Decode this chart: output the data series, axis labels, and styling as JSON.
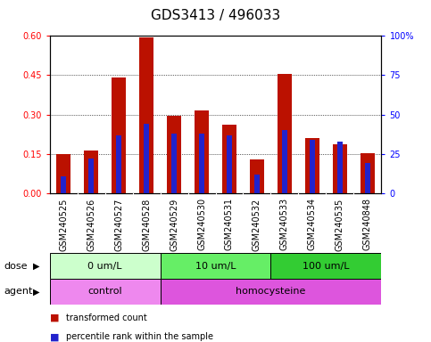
{
  "title": "GDS3413 / 496033",
  "samples": [
    "GSM240525",
    "GSM240526",
    "GSM240527",
    "GSM240528",
    "GSM240529",
    "GSM240530",
    "GSM240531",
    "GSM240532",
    "GSM240533",
    "GSM240534",
    "GSM240535",
    "GSM240848"
  ],
  "transformed_count": [
    0.148,
    0.163,
    0.44,
    0.595,
    0.295,
    0.315,
    0.26,
    0.128,
    0.455,
    0.21,
    0.185,
    0.152
  ],
  "percentile_rank_pct": [
    11,
    22,
    37,
    44,
    38,
    38,
    37,
    12,
    40,
    34,
    33,
    19
  ],
  "ylim_left": [
    0,
    0.6
  ],
  "ylim_right": [
    0,
    100
  ],
  "yticks_left": [
    0,
    0.15,
    0.3,
    0.45,
    0.6
  ],
  "yticks_right": [
    0,
    25,
    50,
    75,
    100
  ],
  "bar_color": "#bb1100",
  "percentile_color": "#2222cc",
  "dose_groups": [
    {
      "label": "0 um/L",
      "start": 0,
      "end": 4,
      "color": "#ccffcc"
    },
    {
      "label": "10 um/L",
      "start": 4,
      "end": 8,
      "color": "#66ee66"
    },
    {
      "label": "100 um/L",
      "start": 8,
      "end": 12,
      "color": "#33cc33"
    }
  ],
  "agent_groups": [
    {
      "label": "control",
      "start": 0,
      "end": 4,
      "color": "#ee88ee"
    },
    {
      "label": "homocysteine",
      "start": 4,
      "end": 12,
      "color": "#dd55dd"
    }
  ],
  "legend_items": [
    {
      "label": "transformed count",
      "color": "#bb1100"
    },
    {
      "label": "percentile rank within the sample",
      "color": "#2222cc"
    }
  ],
  "title_fontsize": 11,
  "tick_fontsize": 7,
  "label_fontsize": 8,
  "annot_fontsize": 8,
  "bar_width": 0.5,
  "blue_bar_width": 0.18
}
